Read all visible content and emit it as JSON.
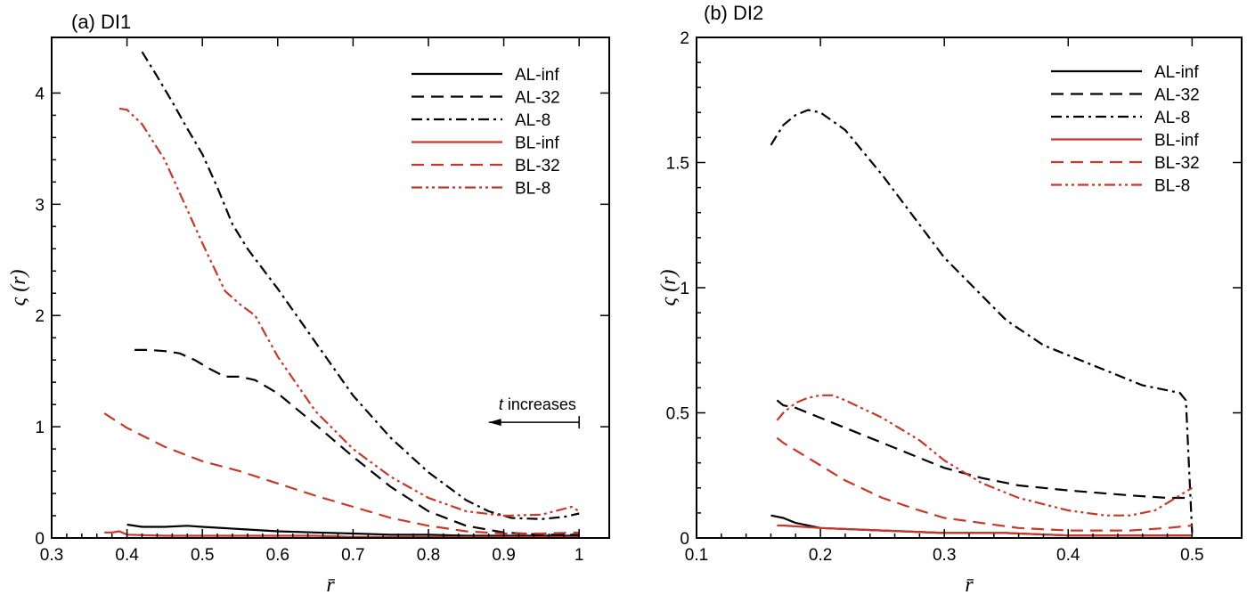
{
  "colors": {
    "black": "#000000",
    "red": "#c8382a"
  },
  "styles": {
    "solid": "",
    "dashed": "14,8",
    "dashdot": "12,5,3,5",
    "dashdotdot": "12,4,3,4,3,4"
  },
  "chart_data": [
    {
      "type": "line",
      "title": "(a) DI1",
      "xlabel": "r̄",
      "ylabel": "ς (r)",
      "xlim": [
        0.3,
        1.04
      ],
      "ylim": [
        0,
        4.5
      ],
      "xticks": [
        0.3,
        0.4,
        0.5,
        0.6,
        0.7,
        0.8,
        0.9,
        1
      ],
      "xtick_labels": [
        "0.3",
        "0.4",
        "0.5",
        "0.6",
        "0.7",
        "0.8",
        "0.9",
        "1"
      ],
      "yticks": [
        0,
        1,
        2,
        3,
        4
      ],
      "ytick_labels": [
        "0",
        "1",
        "2",
        "3",
        "4"
      ],
      "legend_position": "top-right",
      "grid": false,
      "annotation": {
        "text": "t increases",
        "italic_part": "t",
        "arrow": "leftward",
        "x_from": 1.0,
        "x_to": 0.88,
        "y": 1.04
      },
      "series": [
        {
          "name": "AL-inf",
          "color": "black",
          "style": "solid",
          "x": [
            0.4,
            0.42,
            0.45,
            0.48,
            0.5,
            0.55,
            0.6,
            0.65,
            0.7,
            0.75,
            0.8,
            0.85,
            0.9,
            0.95,
            1.0
          ],
          "y": [
            0.12,
            0.1,
            0.1,
            0.11,
            0.1,
            0.08,
            0.06,
            0.05,
            0.04,
            0.03,
            0.03,
            0.02,
            0.02,
            0.02,
            0.02
          ]
        },
        {
          "name": "AL-32",
          "color": "black",
          "style": "dashed",
          "x": [
            0.41,
            0.43,
            0.45,
            0.47,
            0.49,
            0.51,
            0.53,
            0.55,
            0.57,
            0.6,
            0.65,
            0.7,
            0.75,
            0.8,
            0.85,
            0.9,
            0.95,
            1.0
          ],
          "y": [
            1.69,
            1.69,
            1.68,
            1.66,
            1.6,
            1.52,
            1.45,
            1.45,
            1.42,
            1.3,
            1.02,
            0.73,
            0.46,
            0.24,
            0.11,
            0.05,
            0.03,
            0.03
          ]
        },
        {
          "name": "AL-8",
          "color": "black",
          "style": "dashdot",
          "x": [
            0.42,
            0.44,
            0.46,
            0.48,
            0.5,
            0.52,
            0.54,
            0.56,
            0.6,
            0.65,
            0.7,
            0.75,
            0.8,
            0.85,
            0.88,
            0.91,
            0.95,
            0.98,
            1.0
          ],
          "y": [
            4.37,
            4.15,
            3.92,
            3.68,
            3.45,
            3.15,
            2.82,
            2.6,
            2.24,
            1.76,
            1.28,
            0.9,
            0.59,
            0.34,
            0.24,
            0.18,
            0.17,
            0.19,
            0.22
          ]
        },
        {
          "name": "BL-inf",
          "color": "red",
          "style": "solid",
          "x": [
            0.37,
            0.38,
            0.39,
            0.4,
            0.45,
            0.5,
            0.55,
            0.6,
            0.65,
            0.7,
            0.75,
            0.8,
            0.85,
            0.9,
            0.95,
            1.0
          ],
          "y": [
            0.05,
            0.05,
            0.06,
            0.03,
            0.02,
            0.02,
            0.02,
            0.02,
            0.02,
            0.01,
            0.01,
            0.01,
            0.01,
            0.01,
            0.01,
            0.01
          ]
        },
        {
          "name": "BL-32",
          "color": "red",
          "style": "dashed",
          "x": [
            0.37,
            0.4,
            0.45,
            0.5,
            0.55,
            0.6,
            0.65,
            0.7,
            0.75,
            0.8,
            0.85,
            0.9,
            0.95,
            1.0
          ],
          "y": [
            1.12,
            0.99,
            0.82,
            0.69,
            0.6,
            0.49,
            0.38,
            0.28,
            0.18,
            0.11,
            0.06,
            0.04,
            0.04,
            0.05
          ]
        },
        {
          "name": "BL-8",
          "color": "red",
          "style": "dashdotdot",
          "x": [
            0.39,
            0.4,
            0.42,
            0.45,
            0.48,
            0.5,
            0.53,
            0.55,
            0.57,
            0.6,
            0.65,
            0.7,
            0.75,
            0.8,
            0.85,
            0.9,
            0.95,
            0.99,
            1.0
          ],
          "y": [
            3.86,
            3.85,
            3.72,
            3.4,
            2.95,
            2.65,
            2.22,
            2.1,
            2.0,
            1.63,
            1.14,
            0.8,
            0.55,
            0.36,
            0.24,
            0.2,
            0.21,
            0.28,
            0.24
          ]
        }
      ]
    },
    {
      "type": "line",
      "title": "(b) DI2",
      "xlabel": "r̄",
      "ylabel": "ς (r)",
      "xlim": [
        0.1,
        0.54
      ],
      "ylim": [
        0,
        2
      ],
      "xticks": [
        0.1,
        0.2,
        0.3,
        0.4,
        0.5
      ],
      "xtick_labels": [
        "0.1",
        "0.2",
        "0.3",
        "0.4",
        "0.5"
      ],
      "yticks": [
        0,
        0.5,
        1,
        1.5,
        2
      ],
      "ytick_labels": [
        "0",
        "0.5",
        "1",
        "1.5",
        "2"
      ],
      "legend_position": "top-right",
      "grid": false,
      "series": [
        {
          "name": "AL-inf",
          "color": "black",
          "style": "solid",
          "x": [
            0.16,
            0.17,
            0.18,
            0.2,
            0.25,
            0.3,
            0.35,
            0.4,
            0.45,
            0.5
          ],
          "y": [
            0.09,
            0.08,
            0.06,
            0.04,
            0.03,
            0.02,
            0.02,
            0.01,
            0.01,
            0.01
          ]
        },
        {
          "name": "AL-32",
          "color": "black",
          "style": "dashed",
          "x": [
            0.165,
            0.17,
            0.18,
            0.2,
            0.22,
            0.25,
            0.28,
            0.3,
            0.33,
            0.36,
            0.4,
            0.45,
            0.48,
            0.5
          ],
          "y": [
            0.55,
            0.53,
            0.52,
            0.48,
            0.44,
            0.38,
            0.32,
            0.28,
            0.24,
            0.21,
            0.19,
            0.17,
            0.16,
            0.16
          ]
        },
        {
          "name": "AL-8",
          "color": "black",
          "style": "dashdot",
          "x": [
            0.16,
            0.17,
            0.18,
            0.19,
            0.2,
            0.22,
            0.25,
            0.3,
            0.35,
            0.38,
            0.4,
            0.43,
            0.46,
            0.49,
            0.495,
            0.5
          ],
          "y": [
            1.57,
            1.65,
            1.69,
            1.71,
            1.7,
            1.63,
            1.45,
            1.12,
            0.87,
            0.77,
            0.73,
            0.67,
            0.61,
            0.58,
            0.55,
            0.02
          ]
        },
        {
          "name": "BL-inf",
          "color": "red",
          "style": "solid",
          "x": [
            0.165,
            0.17,
            0.2,
            0.25,
            0.3,
            0.35,
            0.4,
            0.45,
            0.5
          ],
          "y": [
            0.05,
            0.05,
            0.04,
            0.03,
            0.02,
            0.02,
            0.01,
            0.01,
            0.01
          ]
        },
        {
          "name": "BL-32",
          "color": "red",
          "style": "dashed",
          "x": [
            0.165,
            0.17,
            0.18,
            0.2,
            0.22,
            0.25,
            0.28,
            0.3,
            0.33,
            0.36,
            0.4,
            0.45,
            0.48,
            0.5
          ],
          "y": [
            0.4,
            0.38,
            0.35,
            0.29,
            0.23,
            0.16,
            0.11,
            0.08,
            0.06,
            0.04,
            0.03,
            0.03,
            0.04,
            0.05
          ]
        },
        {
          "name": "BL-8",
          "color": "red",
          "style": "dashdotdot",
          "x": [
            0.165,
            0.17,
            0.18,
            0.19,
            0.2,
            0.21,
            0.22,
            0.25,
            0.28,
            0.3,
            0.33,
            0.36,
            0.4,
            0.43,
            0.45,
            0.47,
            0.49,
            0.5
          ],
          "y": [
            0.47,
            0.5,
            0.54,
            0.56,
            0.57,
            0.57,
            0.55,
            0.48,
            0.39,
            0.31,
            0.22,
            0.16,
            0.11,
            0.09,
            0.09,
            0.11,
            0.17,
            0.2
          ]
        }
      ]
    }
  ]
}
